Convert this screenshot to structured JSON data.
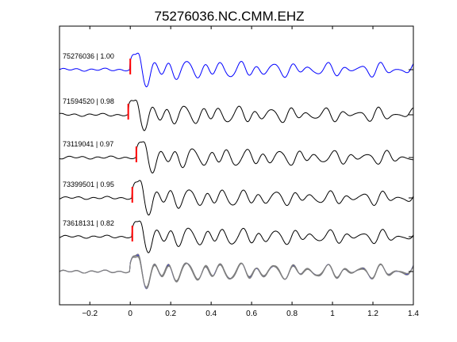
{
  "chart_data": {
    "type": "line",
    "title": "75276036.NC.CMM.EHZ",
    "xlabel": "",
    "ylabel": "",
    "xlim": [
      -0.35,
      1.4
    ],
    "x_ticks": [
      -0.2,
      0,
      0.2,
      0.4,
      0.6,
      0.8,
      1,
      1.2,
      1.4
    ],
    "x_tick_labels": [
      "−0.2",
      "0",
      "0.2",
      "0.4",
      "0.6",
      "0.8",
      "1",
      "1.2",
      "1.4"
    ],
    "grid": false,
    "colors": {
      "template": "#0000ff",
      "trace": "#000000",
      "pick": "#ff0000",
      "overlay": "#7f7f7f"
    },
    "series": [
      {
        "label": "75276036 | 1.00",
        "event_id": "75276036",
        "correlation": 1.0,
        "pick_time": 0.0,
        "style": "template"
      },
      {
        "label": "71594520 | 0.98",
        "event_id": "71594520",
        "correlation": 0.98,
        "pick_time": -0.01,
        "style": "trace"
      },
      {
        "label": "73119041 | 0.97",
        "event_id": "73119041",
        "correlation": 0.97,
        "pick_time": 0.03,
        "style": "trace"
      },
      {
        "label": "73399501 | 0.95",
        "event_id": "73399501",
        "correlation": 0.95,
        "pick_time": 0.01,
        "style": "trace"
      },
      {
        "label": "73618131 | 0.82",
        "event_id": "73618131",
        "correlation": 0.82,
        "pick_time": 0.01,
        "style": "trace"
      }
    ],
    "stack_panel": true
  }
}
